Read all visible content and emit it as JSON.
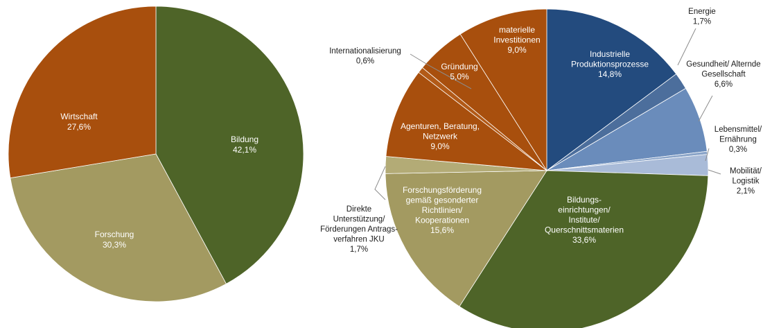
{
  "chart_data": [
    {
      "type": "pie",
      "title": "",
      "slices": [
        {
          "label": "Bildung",
          "value": 42.1,
          "value_label": "42,1%",
          "color": "#4e6428"
        },
        {
          "label": "Forschung",
          "value": 30.3,
          "value_label": "30,3%",
          "color": "#a39a61"
        },
        {
          "label": "Wirtschaft",
          "value": 27.6,
          "value_label": "27,6%",
          "color": "#a84f0d"
        }
      ]
    },
    {
      "type": "pie",
      "title": "",
      "slices": [
        {
          "label": "Industrielle Produktionsprozesse",
          "label_lines": [
            "Industrielle",
            "Produktionsprozesse"
          ],
          "value": 14.8,
          "value_label": "14,8%",
          "color": "#234b7e"
        },
        {
          "label": "Energie",
          "label_lines": [
            "Energie"
          ],
          "value": 1.7,
          "value_label": "1,7%",
          "color": "#4c6e9c"
        },
        {
          "label": "Gesundheit/ Alternde Gesellschaft",
          "label_lines": [
            "Gesundheit/ Alternde",
            "Gesellschaft"
          ],
          "value": 6.6,
          "value_label": "6,6%",
          "color": "#6a8cbb"
        },
        {
          "label": "Lebensmittel/ Ernährung",
          "label_lines": [
            "Lebensmittel/",
            "Ernährung"
          ],
          "value": 0.3,
          "value_label": "0,3%",
          "color": "#8aa4c8"
        },
        {
          "label": "Mobilität/ Logistik",
          "label_lines": [
            "Mobilität/",
            "Logistik"
          ],
          "value": 2.1,
          "value_label": "2,1%",
          "color": "#a9bbd8"
        },
        {
          "label": "Bildungseinrichtungen/ Institute/ Querschnittsmaterien",
          "label_lines": [
            "Bildungs-",
            "einrichtungen/",
            "Institute/",
            "Querschnittsmaterien"
          ],
          "value": 33.6,
          "value_label": "33,6%",
          "color": "#4e6428"
        },
        {
          "label": "Forschungsförderung gemäß gesonderter Richtlinien/ Kooperationen",
          "label_lines": [
            "Forschungsförderung",
            "gemäß gesonderter",
            "Richtlinien/",
            "Kooperationen"
          ],
          "value": 15.6,
          "value_label": "15,6%",
          "color": "#a39a61"
        },
        {
          "label": "Direkte Unterstützung/ Förderungen Antragsverfahren JKU",
          "label_lines": [
            "Direkte",
            "Unterstützung/",
            "Förderungen Antrags-",
            "verfahren JKU"
          ],
          "value": 1.7,
          "value_label": "1,7%",
          "color": "#b3ab76"
        },
        {
          "label": "Agenturen, Beratung, Netzwerk",
          "label_lines": [
            "Agenturen,  Beratung,",
            "Netzwerk"
          ],
          "value": 9.0,
          "value_label": "9,0%",
          "color": "#a84f0d"
        },
        {
          "label": "Internationalisierung",
          "label_lines": [
            "Internationalisierung"
          ],
          "value": 0.6,
          "value_label": "0,6%",
          "color": "#b25a17"
        },
        {
          "label": "Gründung",
          "label_lines": [
            "Gründung"
          ],
          "value": 5.0,
          "value_label": "5,0%",
          "color": "#a84f0d"
        },
        {
          "label": "materielle Investitionen",
          "label_lines": [
            "materielle",
            "Investitionen"
          ],
          "value": 9.0,
          "value_label": "9,0%",
          "color": "#a84f0d"
        }
      ]
    }
  ]
}
